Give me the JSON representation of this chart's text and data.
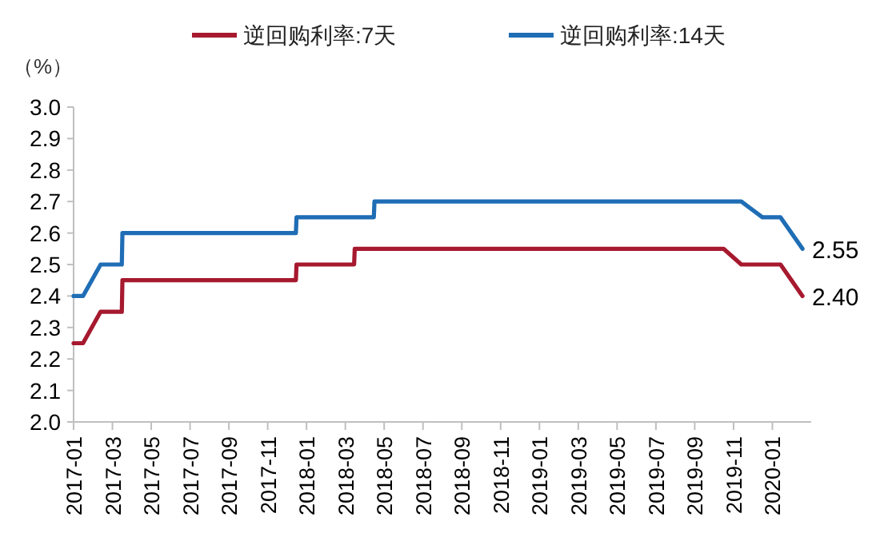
{
  "chart_data": {
    "type": "line",
    "ylabel": "（%）",
    "legend": "top",
    "ylim": [
      2.0,
      3.0
    ],
    "yticks": [
      {
        "value": 2.0,
        "label": "2.0"
      },
      2.1,
      2.2,
      2.3,
      2.4,
      2.5,
      2.6,
      2.7,
      2.8,
      2.9,
      {
        "value": 3.0,
        "label": "3.0"
      }
    ],
    "xlim": [
      "2017-01-01",
      "2020-03-01"
    ],
    "xticks": [
      "2017-01",
      "2017-03",
      "2017-05",
      "2017-07",
      "2017-09",
      "2017-11",
      "2018-01",
      "2018-03",
      "2018-05",
      "2018-07",
      "2018-09",
      "2018-11",
      "2019-01",
      "2019-03",
      "2019-05",
      "2019-07",
      "2019-09",
      "2019-11",
      "2020-01"
    ],
    "series": [
      {
        "name": "逆回购利率:7天",
        "color": "#a6192e",
        "x": [
          "2017-01-01",
          "2017-01-16",
          "2017-02-12",
          "2017-03-16",
          "2017-03-17",
          "2017-12-15",
          "2017-12-16",
          "2018-03-15",
          "2018-03-16",
          "2019-10-16",
          "2019-11-13",
          "2020-01-14",
          "2020-02-17"
        ],
        "values": [
          2.25,
          2.25,
          2.35,
          2.35,
          2.45,
          2.45,
          2.5,
          2.5,
          2.55,
          2.55,
          2.5,
          2.5,
          2.4
        ]
      },
      {
        "name": "逆回购利率:14天",
        "color": "#1f6db5",
        "x": [
          "2017-01-01",
          "2017-01-16",
          "2017-02-12",
          "2017-03-16",
          "2017-03-17",
          "2017-12-15",
          "2017-12-16",
          "2018-04-15",
          "2018-04-16",
          "2019-11-13",
          "2019-12-16",
          "2020-01-14",
          "2020-02-17"
        ],
        "values": [
          2.4,
          2.4,
          2.5,
          2.5,
          2.6,
          2.6,
          2.65,
          2.65,
          2.7,
          2.7,
          2.65,
          2.65,
          2.55
        ]
      }
    ],
    "annotations": [
      {
        "text": "2.55",
        "x": "2020-02-17",
        "y": 2.55
      },
      {
        "text": "2.40",
        "x": "2020-02-17",
        "y": 2.4
      }
    ]
  }
}
